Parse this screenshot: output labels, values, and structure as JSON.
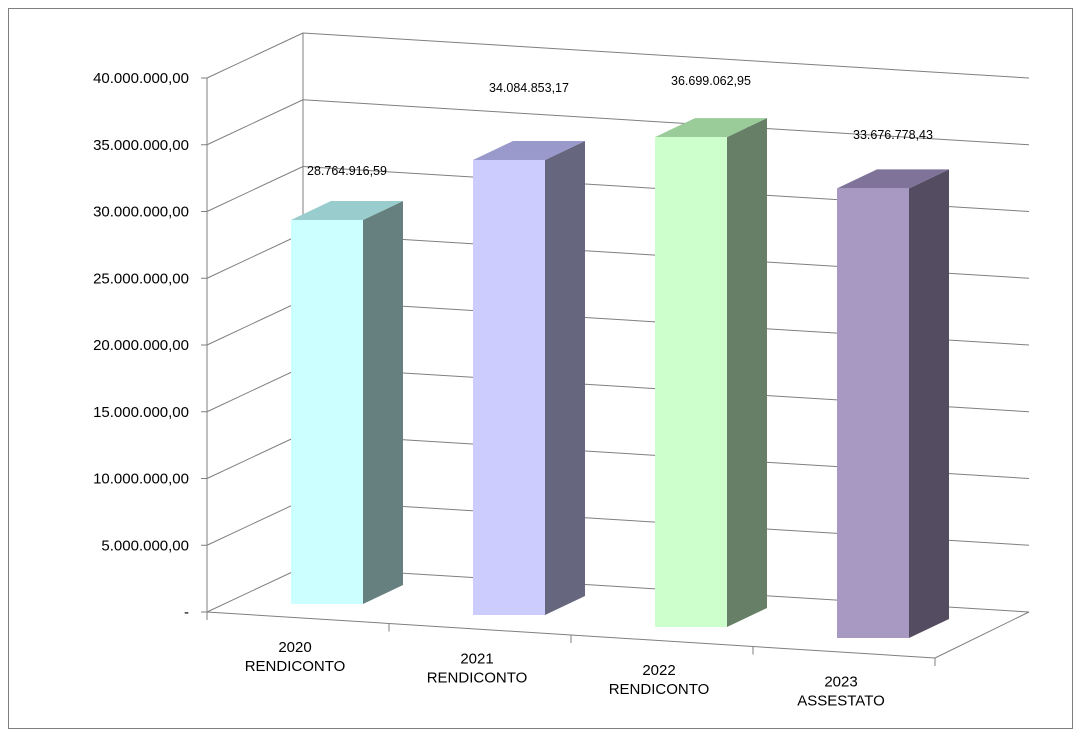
{
  "chart_data": {
    "type": "bar",
    "style": "3d-column",
    "categories": [
      [
        "2020",
        "RENDICONTO"
      ],
      [
        "2021",
        "RENDICONTO"
      ],
      [
        "2022",
        "RENDICONTO"
      ],
      [
        "2023",
        "ASSESTATO"
      ]
    ],
    "values": [
      28764916.59,
      34084853.17,
      36699062.95,
      33676778.43
    ],
    "data_labels": [
      "28.764.916,59",
      "34.084.853,17",
      "36.699.062,95",
      "33.676.778,43"
    ],
    "y_ticks": [
      "-",
      "5.000.000,00",
      "10.000.000,00",
      "15.000.000,00",
      "20.000.000,00",
      "25.000.000,00",
      "30.000.000,00",
      "35.000.000,00",
      "40.000.000,00"
    ],
    "ylim": [
      0,
      40000000
    ],
    "grid": true,
    "legend": "none",
    "colors": [
      {
        "front": "#ccffff",
        "side": "#667f7f",
        "top": "#99cccc"
      },
      {
        "front": "#ccccff",
        "side": "#66667f",
        "top": "#9999cc"
      },
      {
        "front": "#ccffcc",
        "side": "#667f66",
        "top": "#99cc99"
      },
      {
        "front": "#a899c2",
        "side": "#544d61",
        "top": "#7f7399"
      }
    ]
  }
}
